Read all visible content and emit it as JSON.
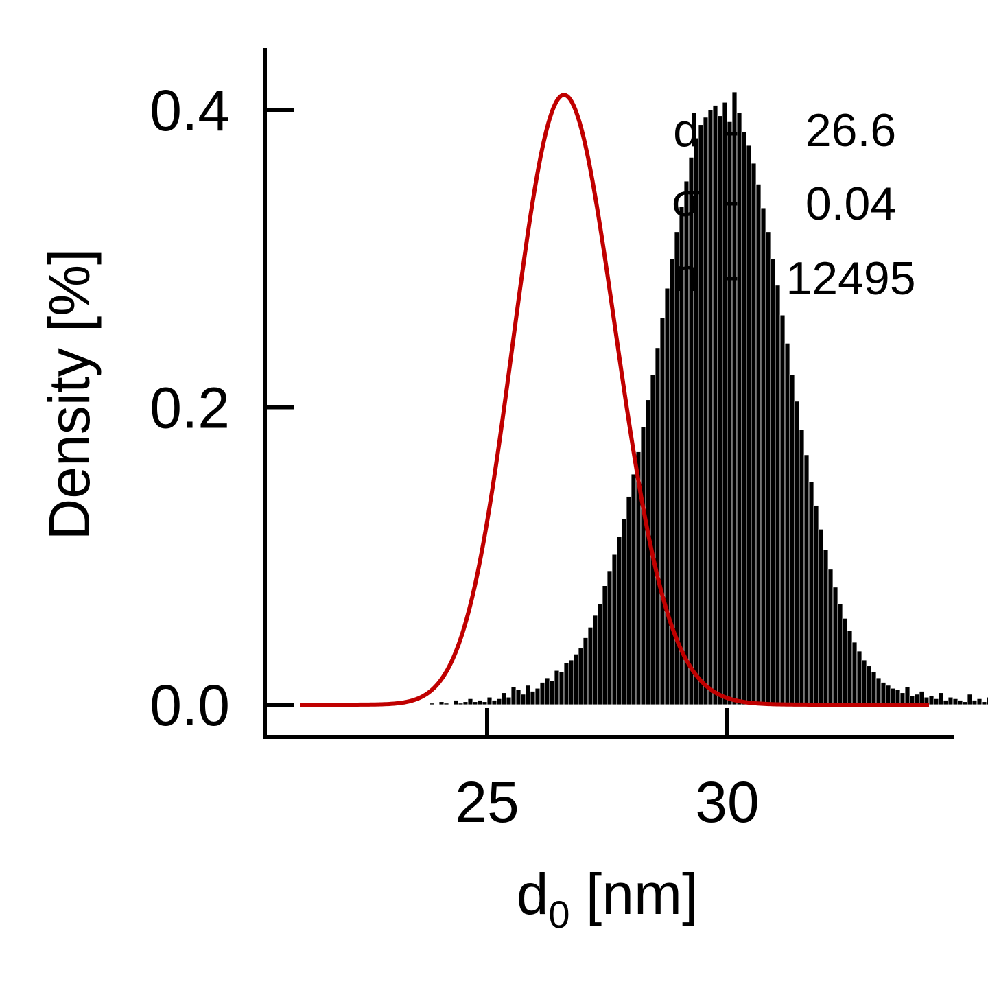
{
  "chart_data": {
    "type": "bar",
    "subtype": "histogram",
    "xlabel": {
      "main": "d",
      "subscript": "0",
      "unit": " [nm]"
    },
    "ylabel": "Density [%]",
    "xlim": [
      20.4,
      35.0
    ],
    "ylim": [
      -0.02,
      0.44
    ],
    "x_ticks": [
      25,
      30
    ],
    "x_tick_labels": [
      "25",
      "30"
    ],
    "y_ticks": [
      0.0,
      0.2,
      0.4
    ],
    "y_tick_labels": [
      "0.0",
      "0.2",
      "0.4"
    ],
    "grid": false,
    "colors": {
      "bars_fill": "#000000",
      "bars_edge": "#ffffff",
      "fit": "#c00000",
      "axes": "#000000"
    },
    "series": [
      {
        "kind": "histogram",
        "bin_width": 0.1,
        "bins_start": 21.8,
        "values": [
          0.0,
          0.0,
          0.0,
          0.001,
          0.0,
          0.0,
          0.0,
          0.0,
          0.001,
          0.0,
          0.0,
          0.0,
          0.0,
          0.0,
          0.001,
          0.0,
          0.0,
          0.0,
          0.0,
          0.0,
          0.001,
          0.0,
          0.002,
          0.001,
          0.0,
          0.003,
          0.001,
          0.002,
          0.004,
          0.002,
          0.003,
          0.002,
          0.005,
          0.003,
          0.004,
          0.008,
          0.005,
          0.012,
          0.01,
          0.007,
          0.013,
          0.009,
          0.011,
          0.015,
          0.018,
          0.016,
          0.023,
          0.022,
          0.028,
          0.03,
          0.034,
          0.038,
          0.045,
          0.052,
          0.06,
          0.068,
          0.08,
          0.09,
          0.101,
          0.113,
          0.125,
          0.14,
          0.155,
          0.17,
          0.187,
          0.205,
          0.222,
          0.24,
          0.26,
          0.28,
          0.3,
          0.318,
          0.335,
          0.352,
          0.368,
          0.381,
          0.39,
          0.395,
          0.4,
          0.403,
          0.396,
          0.405,
          0.392,
          0.412,
          0.398,
          0.385,
          0.376,
          0.364,
          0.35,
          0.334,
          0.318,
          0.3,
          0.282,
          0.262,
          0.243,
          0.222,
          0.204,
          0.185,
          0.168,
          0.15,
          0.134,
          0.118,
          0.104,
          0.091,
          0.079,
          0.068,
          0.058,
          0.05,
          0.042,
          0.036,
          0.03,
          0.026,
          0.022,
          0.018,
          0.015,
          0.013,
          0.011,
          0.01,
          0.008,
          0.012,
          0.006,
          0.007,
          0.009,
          0.005,
          0.006,
          0.004,
          0.008,
          0.003,
          0.005,
          0.004,
          0.003,
          0.002,
          0.007,
          0.003,
          0.004,
          0.002,
          0.005,
          0.003,
          0.002,
          0.001,
          0.003,
          0.002,
          0.004,
          0.002,
          0.003,
          0.001,
          0.002,
          0.003,
          0.001,
          0.002,
          0.003,
          0.001,
          0.002,
          0.001,
          0.001,
          0.001,
          0.002,
          0.001,
          0.001,
          0.001,
          0.002,
          0.001,
          0.0,
          0.001,
          0.001,
          0.002,
          0.001,
          0.0,
          0.001,
          0.0,
          0.001,
          0.002,
          0.0,
          0.001,
          0.0
        ]
      },
      {
        "kind": "fit",
        "curve": "lognormal",
        "mode": 26.6,
        "sigma": 0.04,
        "peak": 0.41,
        "x_range": [
          21.1,
          34.2
        ]
      }
    ],
    "annotations": [
      {
        "symbol": "d",
        "sep": "-",
        "value": "26.6"
      },
      {
        "symbol": "σ",
        "sep": "-",
        "value": "0.04"
      },
      {
        "symbol": "n",
        "sep": "-",
        "value": "12495"
      }
    ]
  }
}
